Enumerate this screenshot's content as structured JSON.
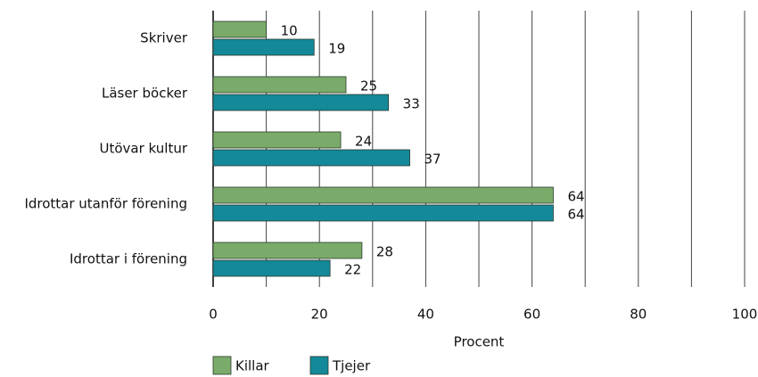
{
  "chart_data": {
    "type": "bar",
    "orientation": "horizontal",
    "categories": [
      "Skriver",
      "Läser böcker",
      "Utövar kultur",
      "Idrottar utanför förening",
      "Idrottar i förening"
    ],
    "series": [
      {
        "name": "Killar",
        "color": "#7aab6a",
        "values": [
          10,
          25,
          24,
          64,
          28
        ]
      },
      {
        "name": "Tjejer",
        "color": "#13899a",
        "values": [
          19,
          33,
          37,
          64,
          22
        ]
      }
    ],
    "xlabel": "Procent",
    "xlim": [
      0,
      100
    ],
    "xticks": [
      0,
      20,
      40,
      60,
      80,
      100
    ],
    "minor_xticks": [
      10,
      30,
      50,
      70,
      90
    ],
    "grid": true,
    "legend": "bottom"
  }
}
